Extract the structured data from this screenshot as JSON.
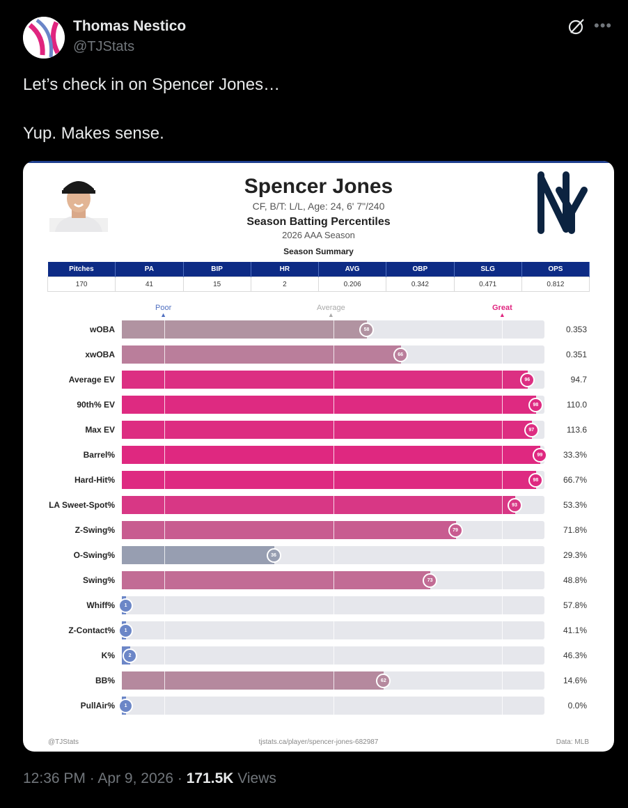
{
  "author": {
    "name": "Thomas Nestico",
    "handle": "@TJStats"
  },
  "tweet": {
    "line1": "Let’s check in on Spencer Jones…",
    "line2": "Yup. Makes sense."
  },
  "card": {
    "player_name": "Spencer Jones",
    "bio": "CF, B/T: L/L, Age: 24, 6' 7\"/240",
    "subtitle": "Season Batting Percentiles",
    "season": "2026 AAA Season",
    "summary_title": "Season Summary",
    "summary_headers": [
      "Pitches",
      "PA",
      "BIP",
      "HR",
      "AVG",
      "OBP",
      "SLG",
      "OPS"
    ],
    "summary_values": [
      "170",
      "41",
      "15",
      "2",
      "0.206",
      "0.342",
      "0.471",
      "0.812"
    ],
    "scale": {
      "poor": "Poor",
      "average": "Average",
      "great": "Great"
    },
    "footer": {
      "left": "@TJStats",
      "center": "tjstats.ca/player/spencer-jones-682987",
      "right": "Data: MLB"
    },
    "colors": {
      "poor": "#6a85c8",
      "average": "#a8a8a8",
      "great": "#e0257f",
      "header": "#0d2b85"
    }
  },
  "chart_data": {
    "type": "bar",
    "categories": [
      "wOBA",
      "xwOBA",
      "Average EV",
      "90th% EV",
      "Max EV",
      "Barrel%",
      "Hard-Hit%",
      "LA Sweet-Spot%",
      "Z-Swing%",
      "O-Swing%",
      "Swing%",
      "Whiff%",
      "Z-Contact%",
      "K%",
      "BB%",
      "PullAir%"
    ],
    "percentiles": [
      58,
      66,
      96,
      98,
      97,
      99,
      98,
      93,
      79,
      36,
      73,
      1,
      1,
      2,
      62,
      1
    ],
    "values": [
      "0.353",
      "0.351",
      "94.7",
      "110.0",
      "113.6",
      "33.3%",
      "66.7%",
      "53.3%",
      "71.8%",
      "29.3%",
      "48.8%",
      "57.8%",
      "41.1%",
      "46.3%",
      "14.6%",
      "0.0%"
    ],
    "xlim": [
      0,
      100
    ],
    "reference_lines": [
      10,
      50,
      90
    ]
  },
  "meta": {
    "time": "12:36 PM",
    "sep": "·",
    "date": "Apr 9, 2026",
    "views_count": "171.5K",
    "views_label": "Views"
  }
}
